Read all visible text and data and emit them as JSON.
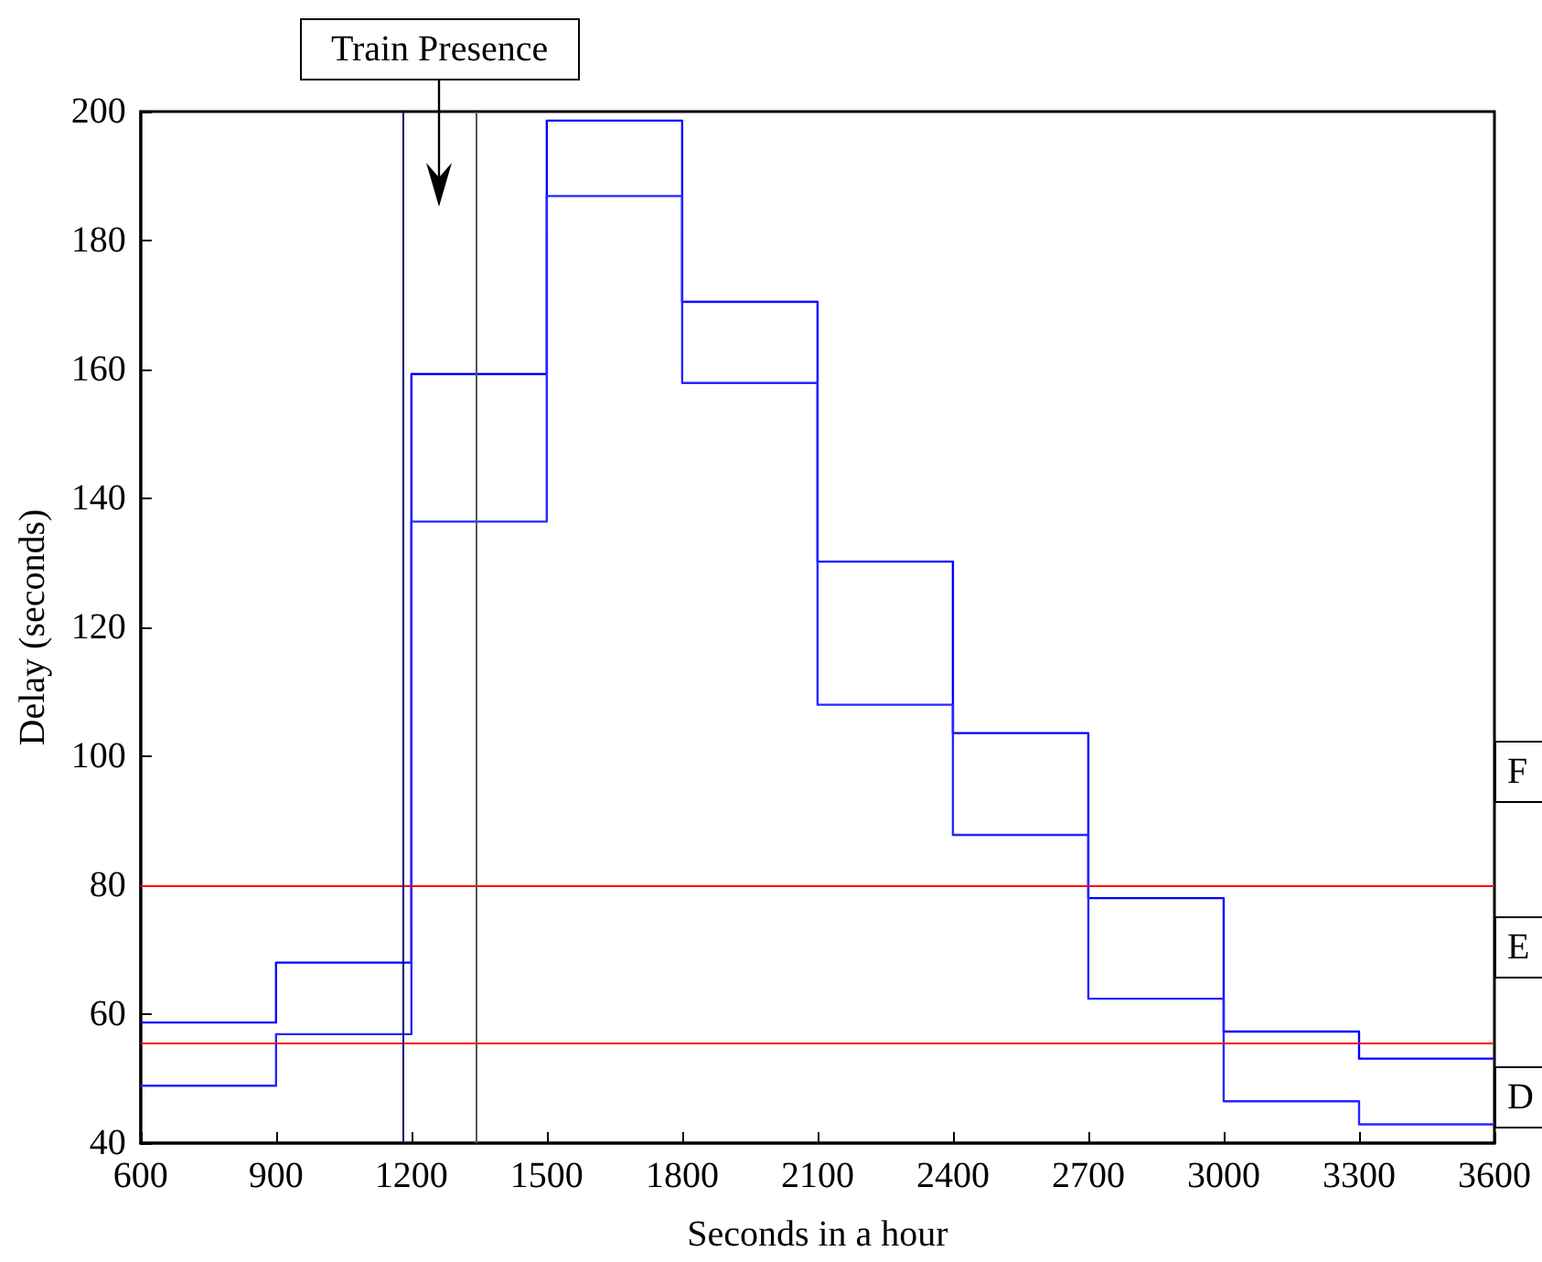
{
  "chart_data": {
    "type": "histogram",
    "xlabel": "Seconds in a hour",
    "ylabel": "Delay (seconds)",
    "bins": [
      600,
      900,
      1200,
      1500,
      1800,
      2100,
      2400,
      2700,
      3000,
      3300,
      3600
    ],
    "series": [
      {
        "color": "#0000ff",
        "values": [
          58.7,
          68.0,
          159.3,
          198.6,
          170.5,
          130.2,
          103.6,
          78.0,
          57.3,
          53.1
        ]
      },
      {
        "color": "#2626ff",
        "values": [
          48.9,
          56.9,
          136.4,
          186.9,
          157.9,
          108.0,
          87.8,
          62.4,
          46.5,
          42.9
        ]
      }
    ],
    "xlim": [
      600,
      3600
    ],
    "xticks": [
      600,
      900,
      1200,
      1500,
      1800,
      2100,
      2400,
      2700,
      3000,
      3300,
      3600
    ],
    "ylim": [
      40,
      200
    ],
    "yticks": [
      40,
      60,
      80,
      100,
      120,
      140,
      160,
      180,
      200
    ],
    "grid": false,
    "ref_lines": [
      {
        "axis": "y",
        "value": 80,
        "color": "#ff0000"
      },
      {
        "axis": "y",
        "value": 55.4,
        "color": "#ff0000"
      },
      {
        "axis": "x",
        "value": 1183,
        "color": "#000080"
      },
      {
        "axis": "x",
        "value": 1343,
        "color": "#555555"
      }
    ],
    "annotations": [
      "Train Presence",
      "F",
      "E",
      "D"
    ]
  }
}
